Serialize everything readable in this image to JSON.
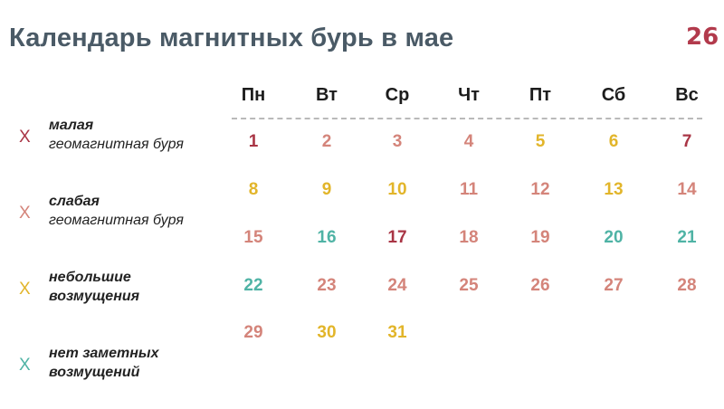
{
  "title": "Календарь магнитных бурь в мае",
  "logo": "26",
  "colors": {
    "minor": "#a93545",
    "weak": "#d4847a",
    "small": "#e2b52a",
    "none": "#4fb3a5"
  },
  "legend": [
    {
      "mark": "X",
      "level": "minor",
      "line1": "малая",
      "line2": "геомагнитная буря"
    },
    {
      "mark": "X",
      "level": "weak",
      "line1": "слабая",
      "line2": "геомагнитная буря"
    },
    {
      "mark": "X",
      "level": "small",
      "line1": "небольшие",
      "line2": "возмущения"
    },
    {
      "mark": "X",
      "level": "none",
      "line1": "нет заметных",
      "line2": "возмущений"
    }
  ],
  "weekdays": [
    "Пн",
    "Вт",
    "Ср",
    "Чт",
    "Пт",
    "Сб",
    "Вс"
  ],
  "days": [
    {
      "n": "1",
      "level": "minor"
    },
    {
      "n": "2",
      "level": "weak"
    },
    {
      "n": "3",
      "level": "weak"
    },
    {
      "n": "4",
      "level": "weak"
    },
    {
      "n": "5",
      "level": "small"
    },
    {
      "n": "6",
      "level": "small"
    },
    {
      "n": "7",
      "level": "minor"
    },
    {
      "n": "8",
      "level": "small"
    },
    {
      "n": "9",
      "level": "small"
    },
    {
      "n": "10",
      "level": "small"
    },
    {
      "n": "11",
      "level": "weak"
    },
    {
      "n": "12",
      "level": "weak"
    },
    {
      "n": "13",
      "level": "small"
    },
    {
      "n": "14",
      "level": "weak"
    },
    {
      "n": "15",
      "level": "weak"
    },
    {
      "n": "16",
      "level": "none"
    },
    {
      "n": "17",
      "level": "minor"
    },
    {
      "n": "18",
      "level": "weak"
    },
    {
      "n": "19",
      "level": "weak"
    },
    {
      "n": "20",
      "level": "none"
    },
    {
      "n": "21",
      "level": "none"
    },
    {
      "n": "22",
      "level": "none"
    },
    {
      "n": "23",
      "level": "weak"
    },
    {
      "n": "24",
      "level": "weak"
    },
    {
      "n": "25",
      "level": "weak"
    },
    {
      "n": "26",
      "level": "weak"
    },
    {
      "n": "27",
      "level": "weak"
    },
    {
      "n": "28",
      "level": "weak"
    },
    {
      "n": "29",
      "level": "weak"
    },
    {
      "n": "30",
      "level": "small"
    },
    {
      "n": "31",
      "level": "small"
    }
  ]
}
